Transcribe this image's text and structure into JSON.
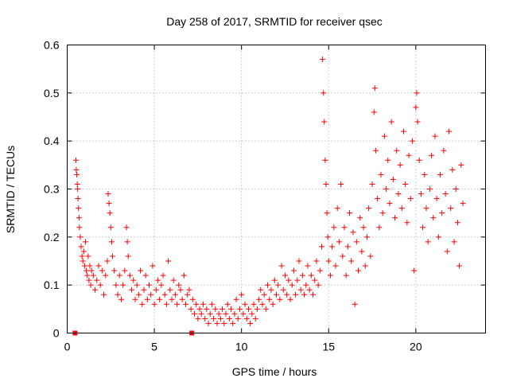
{
  "chart_data": {
    "type": "scatter",
    "title": "Day 258 of 2017, SRMTID for receiver qsec",
    "xlabel": "GPS time / hours",
    "ylabel": "SRMTID / TECUs",
    "xlim": [
      0,
      24
    ],
    "ylim": [
      0,
      0.6
    ],
    "xticks": [
      0,
      5,
      10,
      15,
      20
    ],
    "yticks": [
      0,
      0.1,
      0.2,
      0.3,
      0.4,
      0.5,
      0.6
    ],
    "grid": true,
    "series": [
      {
        "name": "SRMTID",
        "marker": "plus",
        "color": "#ff0000",
        "points": [
          [
            0.5,
            0.36
          ],
          [
            0.52,
            0.34
          ],
          [
            0.55,
            0.33
          ],
          [
            0.58,
            0.31
          ],
          [
            0.6,
            0.3
          ],
          [
            0.62,
            0.28
          ],
          [
            0.65,
            0.26
          ],
          [
            0.68,
            0.24
          ],
          [
            0.7,
            0.22
          ],
          [
            0.75,
            0.2
          ],
          [
            0.8,
            0.18
          ],
          [
            0.85,
            0.16
          ],
          [
            0.9,
            0.15
          ],
          [
            0.95,
            0.17
          ],
          [
            1.0,
            0.14
          ],
          [
            1.05,
            0.19
          ],
          [
            1.1,
            0.13
          ],
          [
            1.15,
            0.12
          ],
          [
            1.2,
            0.16
          ],
          [
            1.25,
            0.11
          ],
          [
            1.3,
            0.14
          ],
          [
            1.35,
            0.1
          ],
          [
            1.4,
            0.13
          ],
          [
            1.5,
            0.12
          ],
          [
            1.6,
            0.09
          ],
          [
            1.7,
            0.11
          ],
          [
            1.8,
            0.14
          ],
          [
            1.9,
            0.1
          ],
          [
            2.0,
            0.13
          ],
          [
            2.1,
            0.08
          ],
          [
            2.2,
            0.12
          ],
          [
            2.3,
            0.15
          ],
          [
            2.35,
            0.29
          ],
          [
            2.4,
            0.27
          ],
          [
            2.45,
            0.25
          ],
          [
            2.5,
            0.22
          ],
          [
            2.55,
            0.19
          ],
          [
            2.6,
            0.16
          ],
          [
            2.7,
            0.13
          ],
          [
            2.8,
            0.1
          ],
          [
            2.9,
            0.08
          ],
          [
            3.0,
            0.12
          ],
          [
            3.1,
            0.07
          ],
          [
            3.2,
            0.1
          ],
          [
            3.3,
            0.13
          ],
          [
            3.4,
            0.22
          ],
          [
            3.45,
            0.19
          ],
          [
            3.5,
            0.16
          ],
          [
            3.6,
            0.12
          ],
          [
            3.7,
            0.09
          ],
          [
            3.8,
            0.11
          ],
          [
            3.9,
            0.07
          ],
          [
            4.0,
            0.1
          ],
          [
            4.1,
            0.08
          ],
          [
            4.2,
            0.13
          ],
          [
            4.3,
            0.06
          ],
          [
            4.4,
            0.09
          ],
          [
            4.5,
            0.12
          ],
          [
            4.6,
            0.07
          ],
          [
            4.7,
            0.1
          ],
          [
            4.8,
            0.08
          ],
          [
            4.9,
            0.14
          ],
          [
            5.0,
            0.06
          ],
          [
            5.1,
            0.09
          ],
          [
            5.2,
            0.11
          ],
          [
            5.3,
            0.07
          ],
          [
            5.4,
            0.1
          ],
          [
            5.5,
            0.12
          ],
          [
            5.6,
            0.08
          ],
          [
            5.7,
            0.06
          ],
          [
            5.8,
            0.15
          ],
          [
            5.9,
            0.09
          ],
          [
            6.0,
            0.07
          ],
          [
            6.1,
            0.11
          ],
          [
            6.2,
            0.08
          ],
          [
            6.3,
            0.06
          ],
          [
            6.4,
            0.1
          ],
          [
            6.5,
            0.09
          ],
          [
            6.6,
            0.07
          ],
          [
            6.7,
            0.12
          ],
          [
            6.8,
            0.06
          ],
          [
            6.9,
            0.08
          ],
          [
            7.0,
            0.09
          ],
          [
            7.1,
            0.05
          ],
          [
            7.2,
            0.07
          ],
          [
            7.3,
            0.04
          ],
          [
            7.4,
            0.06
          ],
          [
            7.5,
            0.03
          ],
          [
            7.6,
            0.05
          ],
          [
            7.7,
            0.04
          ],
          [
            7.8,
            0.06
          ],
          [
            7.9,
            0.03
          ],
          [
            8.0,
            0.05
          ],
          [
            8.1,
            0.02
          ],
          [
            8.2,
            0.04
          ],
          [
            8.3,
            0.06
          ],
          [
            8.4,
            0.03
          ],
          [
            8.5,
            0.05
          ],
          [
            8.6,
            0.02
          ],
          [
            8.7,
            0.04
          ],
          [
            8.8,
            0.03
          ],
          [
            8.9,
            0.05
          ],
          [
            9.0,
            0.02
          ],
          [
            9.1,
            0.04
          ],
          [
            9.2,
            0.06
          ],
          [
            9.3,
            0.03
          ],
          [
            9.4,
            0.05
          ],
          [
            9.5,
            0.02
          ],
          [
            9.6,
            0.04
          ],
          [
            9.7,
            0.07
          ],
          [
            9.8,
            0.03
          ],
          [
            9.9,
            0.05
          ],
          [
            10.0,
            0.08
          ],
          [
            10.1,
            0.04
          ],
          [
            10.2,
            0.06
          ],
          [
            10.3,
            0.03
          ],
          [
            10.4,
            0.05
          ],
          [
            10.5,
            0.02
          ],
          [
            10.6,
            0.04
          ],
          [
            10.7,
            0.06
          ],
          [
            10.8,
            0.03
          ],
          [
            10.9,
            0.05
          ],
          [
            11.0,
            0.07
          ],
          [
            11.1,
            0.09
          ],
          [
            11.2,
            0.06
          ],
          [
            11.3,
            0.08
          ],
          [
            11.4,
            0.05
          ],
          [
            11.5,
            0.1
          ],
          [
            11.6,
            0.07
          ],
          [
            11.7,
            0.09
          ],
          [
            11.8,
            0.06
          ],
          [
            11.9,
            0.11
          ],
          [
            12.0,
            0.08
          ],
          [
            12.1,
            0.1
          ],
          [
            12.2,
            0.07
          ],
          [
            12.3,
            0.14
          ],
          [
            12.4,
            0.09
          ],
          [
            12.5,
            0.12
          ],
          [
            12.6,
            0.08
          ],
          [
            12.7,
            0.11
          ],
          [
            12.8,
            0.07
          ],
          [
            12.9,
            0.1
          ],
          [
            13.0,
            0.13
          ],
          [
            13.1,
            0.08
          ],
          [
            13.2,
            0.11
          ],
          [
            13.3,
            0.15
          ],
          [
            13.4,
            0.09
          ],
          [
            13.5,
            0.12
          ],
          [
            13.6,
            0.08
          ],
          [
            13.7,
            0.1
          ],
          [
            13.8,
            0.14
          ],
          [
            13.9,
            0.09
          ],
          [
            14.0,
            0.12
          ],
          [
            14.1,
            0.08
          ],
          [
            14.2,
            0.11
          ],
          [
            14.3,
            0.15
          ],
          [
            14.4,
            0.1
          ],
          [
            14.5,
            0.13
          ],
          [
            14.6,
            0.18
          ],
          [
            14.65,
            0.57
          ],
          [
            14.7,
            0.5
          ],
          [
            14.75,
            0.44
          ],
          [
            14.8,
            0.36
          ],
          [
            14.85,
            0.31
          ],
          [
            14.9,
            0.25
          ],
          [
            14.95,
            0.2
          ],
          [
            15.0,
            0.15
          ],
          [
            15.1,
            0.12
          ],
          [
            15.2,
            0.18
          ],
          [
            15.3,
            0.22
          ],
          [
            15.4,
            0.14
          ],
          [
            15.5,
            0.26
          ],
          [
            15.6,
            0.19
          ],
          [
            15.7,
            0.31
          ],
          [
            15.8,
            0.16
          ],
          [
            15.9,
            0.22
          ],
          [
            16.0,
            0.12
          ],
          [
            16.1,
            0.18
          ],
          [
            16.2,
            0.25
          ],
          [
            16.3,
            0.15
          ],
          [
            16.4,
            0.21
          ],
          [
            16.5,
            0.06
          ],
          [
            16.6,
            0.19
          ],
          [
            16.7,
            0.13
          ],
          [
            16.8,
            0.24
          ],
          [
            16.9,
            0.17
          ],
          [
            17.0,
            0.22
          ],
          [
            17.1,
            0.14
          ],
          [
            17.2,
            0.2
          ],
          [
            17.3,
            0.26
          ],
          [
            17.4,
            0.16
          ],
          [
            17.5,
            0.31
          ],
          [
            17.6,
            0.46
          ],
          [
            17.65,
            0.51
          ],
          [
            17.7,
            0.38
          ],
          [
            17.8,
            0.28
          ],
          [
            17.9,
            0.22
          ],
          [
            18.0,
            0.33
          ],
          [
            18.1,
            0.25
          ],
          [
            18.2,
            0.41
          ],
          [
            18.3,
            0.3
          ],
          [
            18.4,
            0.36
          ],
          [
            18.5,
            0.27
          ],
          [
            18.6,
            0.44
          ],
          [
            18.7,
            0.32
          ],
          [
            18.8,
            0.24
          ],
          [
            18.9,
            0.38
          ],
          [
            19.0,
            0.29
          ],
          [
            19.1,
            0.35
          ],
          [
            19.2,
            0.26
          ],
          [
            19.3,
            0.42
          ],
          [
            19.4,
            0.31
          ],
          [
            19.5,
            0.23
          ],
          [
            19.6,
            0.37
          ],
          [
            19.7,
            0.28
          ],
          [
            19.8,
            0.4
          ],
          [
            19.9,
            0.13
          ],
          [
            20.0,
            0.47
          ],
          [
            20.05,
            0.5
          ],
          [
            20.1,
            0.44
          ],
          [
            20.2,
            0.36
          ],
          [
            20.3,
            0.29
          ],
          [
            20.4,
            0.22
          ],
          [
            20.5,
            0.33
          ],
          [
            20.6,
            0.26
          ],
          [
            20.7,
            0.19
          ],
          [
            20.8,
            0.3
          ],
          [
            20.9,
            0.37
          ],
          [
            21.0,
            0.24
          ],
          [
            21.1,
            0.41
          ],
          [
            21.2,
            0.28
          ],
          [
            21.3,
            0.2
          ],
          [
            21.4,
            0.33
          ],
          [
            21.5,
            0.25
          ],
          [
            21.6,
            0.38
          ],
          [
            21.7,
            0.29
          ],
          [
            21.8,
            0.17
          ],
          [
            21.9,
            0.42
          ],
          [
            22.0,
            0.26
          ],
          [
            22.1,
            0.34
          ],
          [
            22.2,
            0.19
          ],
          [
            22.3,
            0.3
          ],
          [
            22.4,
            0.23
          ],
          [
            22.5,
            0.14
          ],
          [
            22.6,
            0.35
          ],
          [
            22.7,
            0.27
          ]
        ]
      }
    ],
    "markers": [
      {
        "x": 0.45,
        "y": 0.0,
        "shape": "square"
      },
      {
        "x": 7.15,
        "y": 0.0,
        "shape": "square"
      }
    ]
  }
}
